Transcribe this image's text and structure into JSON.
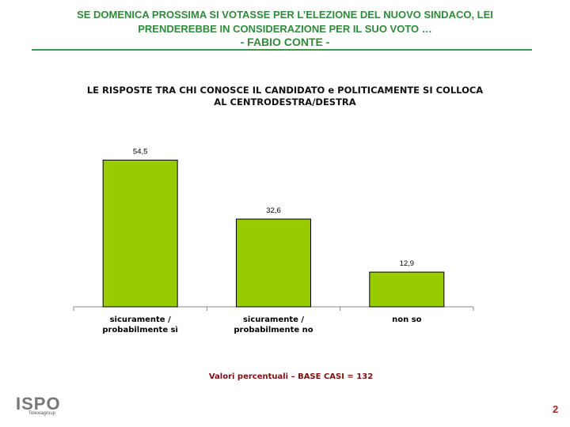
{
  "header": {
    "line1": "SE DOMENICA PROSSIMA SI VOTASSE PER L’ELEZIONE DEL NUOVO SINDACO, LEI",
    "line2": "PRENDEREBBE IN CONSIDERAZIONE PER IL SUO VOTO …",
    "candidate": "- FABIO CONTE -"
  },
  "chart_data": {
    "type": "bar",
    "title": "LE RISPOSTE TRA CHI CONOSCE IL CANDIDATO e POLITICAMENTE SI COLLOCA AL CENTRODESTRA/DESTRA",
    "title_line1": "LE RISPOSTE TRA CHI CONOSCE IL CANDIDATO e POLITICAMENTE SI COLLOCA",
    "title_line2": "AL CENTRODESTRA/DESTRA",
    "categories": [
      [
        "sicuramente /",
        "probabilmente sì"
      ],
      [
        "sicuramente /",
        "probabilmente no"
      ],
      [
        "non so"
      ]
    ],
    "values": [
      54.5,
      32.6,
      12.9
    ],
    "value_labels": [
      "54,5",
      "32,6",
      "12,9"
    ],
    "ylim": [
      0,
      100
    ],
    "bar_color": "#99cc00",
    "grid": false,
    "legend": "none"
  },
  "footnote": "Valori percentuali – BASE CASI = 132",
  "logo": {
    "name": "ISPO",
    "sub": "Telexiagroup"
  },
  "page_number": "2"
}
